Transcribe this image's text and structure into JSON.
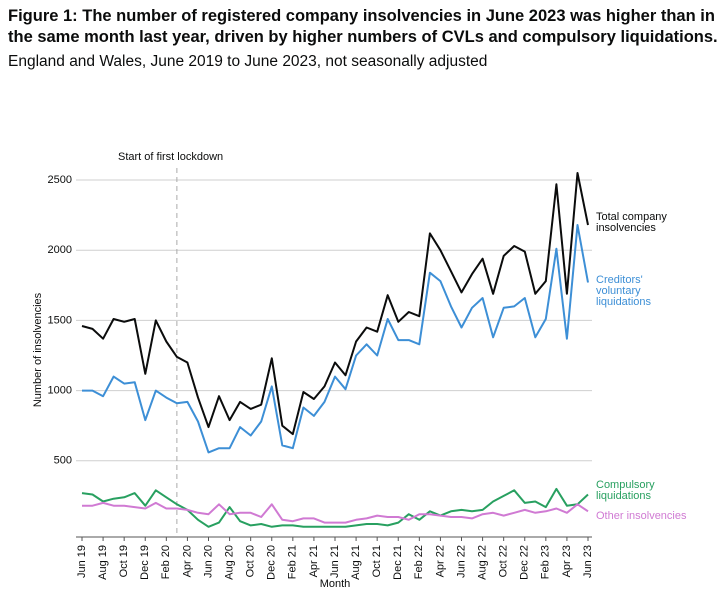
{
  "chart_data": {
    "type": "line",
    "title": "Figure 1: The number of registered company insolvencies in June 2023 was higher than in the same month last year, driven by higher numbers of CVLs and compulsory liquidations.",
    "subtitle": "England and Wales, June 2019 to June 2023, not seasonally adjusted",
    "x_label": "Month",
    "y_label": "Number of insolvencies",
    "annotation": "Start of first lockdown",
    "categories": [
      "Jun 19",
      null,
      "Aug 19",
      null,
      "Oct 19",
      null,
      "Dec 19",
      null,
      "Feb 20",
      null,
      "Apr 20",
      null,
      "Jun 20",
      null,
      "Aug 20",
      null,
      "Oct 20",
      null,
      "Dec 20",
      null,
      "Feb 21",
      null,
      "Apr 21",
      null,
      "Jun 21",
      null,
      "Aug 21",
      null,
      "Oct 21",
      null,
      "Dec 21",
      null,
      "Feb 22",
      null,
      "Apr 22",
      null,
      "Jun 22",
      null,
      "Aug 22",
      null,
      "Oct 22",
      null,
      "Dec 22",
      null,
      "Feb 23",
      null,
      "Apr 23",
      null,
      "Jun 23"
    ],
    "series": [
      {
        "name": "Total company insolvencies",
        "color": "#0b0c0c",
        "values": [
          1460,
          1440,
          1370,
          1510,
          1490,
          1510,
          1120,
          1500,
          1350,
          1240,
          1200,
          950,
          740,
          960,
          790,
          920,
          870,
          900,
          1230,
          750,
          690,
          990,
          940,
          1030,
          1200,
          1110,
          1350,
          1450,
          1420,
          1680,
          1490,
          1560,
          1530,
          2120,
          2000,
          1850,
          1700,
          1830,
          1940,
          1690,
          1960,
          2030,
          1990,
          1690,
          1780,
          2470,
          1690,
          2550,
          2180
        ]
      },
      {
        "name": "Creditors' voluntary liquidations",
        "color": "#3d8fd6",
        "values": [
          1000,
          1000,
          960,
          1100,
          1050,
          1060,
          790,
          1000,
          950,
          910,
          920,
          780,
          560,
          590,
          590,
          740,
          680,
          780,
          1030,
          610,
          590,
          880,
          820,
          920,
          1100,
          1010,
          1250,
          1330,
          1250,
          1510,
          1360,
          1360,
          1330,
          1840,
          1780,
          1600,
          1450,
          1590,
          1660,
          1380,
          1590,
          1600,
          1660,
          1380,
          1510,
          2010,
          1370,
          2180,
          1770
        ]
      },
      {
        "name": "Compulsory liquidations",
        "color": "#28a060",
        "values": [
          270,
          260,
          210,
          230,
          240,
          270,
          180,
          290,
          240,
          190,
          150,
          80,
          30,
          60,
          170,
          70,
          40,
          50,
          30,
          40,
          40,
          30,
          30,
          30,
          30,
          30,
          40,
          50,
          50,
          40,
          60,
          120,
          80,
          140,
          110,
          140,
          150,
          140,
          150,
          210,
          250,
          290,
          200,
          210,
          170,
          300,
          180,
          190,
          260
        ]
      },
      {
        "name": "Other insolvencies",
        "color": "#d07ad3",
        "values": [
          180,
          180,
          200,
          180,
          180,
          170,
          160,
          200,
          160,
          160,
          150,
          130,
          120,
          190,
          120,
          130,
          130,
          100,
          190,
          80,
          70,
          90,
          90,
          60,
          60,
          60,
          80,
          90,
          110,
          100,
          100,
          80,
          120,
          120,
          110,
          100,
          100,
          90,
          120,
          130,
          110,
          130,
          150,
          130,
          140,
          160,
          130,
          190,
          140
        ]
      }
    ],
    "ylim": [
      0,
      2650
    ],
    "yticks": [
      500,
      1000,
      1500,
      2000,
      2500
    ],
    "grid": true
  }
}
